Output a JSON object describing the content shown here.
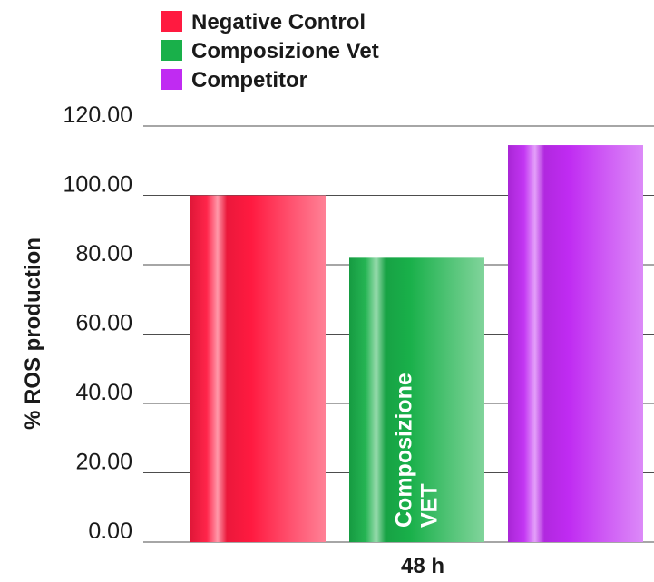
{
  "chart_data": {
    "type": "bar",
    "title": "",
    "xlabel": "48 h",
    "ylabel": "% ROS production",
    "categories": [
      "48 h"
    ],
    "series": [
      {
        "name": "Negative Control",
        "values": [
          100.0
        ],
        "color": "#ff1a40"
      },
      {
        "name": "Composizione Vet",
        "values": [
          82.0
        ],
        "color": "#19b04a"
      },
      {
        "name": "Competitor",
        "values": [
          114.5
        ],
        "color": "#c02bf2"
      }
    ],
    "ylim": [
      0,
      120
    ],
    "yticks": [
      "0.00",
      "20.00",
      "40.00",
      "60.00",
      "80.00",
      "100.00",
      "120.00"
    ],
    "ytick_values": [
      0,
      20,
      40,
      60,
      80,
      100,
      120
    ],
    "grid": true,
    "legend_position": "top-left",
    "annotations": [
      {
        "series": "Composizione Vet",
        "lines": [
          "Composizione",
          "VET"
        ]
      }
    ]
  }
}
